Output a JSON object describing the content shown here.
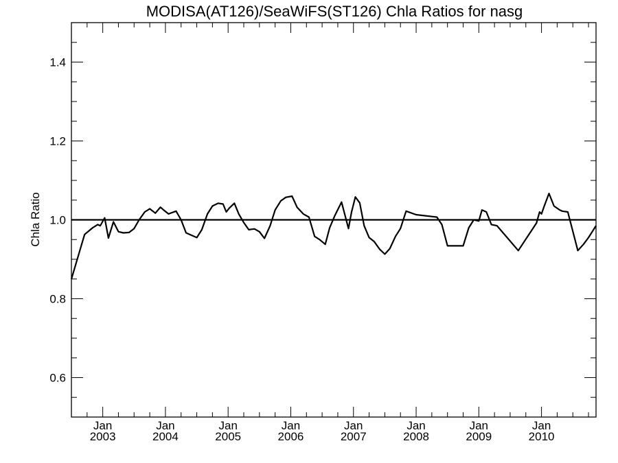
{
  "chart_data": {
    "type": "line",
    "title": "MODISA(AT126)/SeaWiFS(ST126)  Chla Ratios for nasg",
    "xlabel": "",
    "ylabel": "Chla Ratio",
    "x_unit": "decimal year",
    "xlim": [
      2002.5,
      2010.87
    ],
    "ylim": [
      0.5,
      1.5
    ],
    "grid": false,
    "legend": "none",
    "line_color": "#000000",
    "y_ticks": [
      {
        "value": 0.6,
        "label": "0.6"
      },
      {
        "value": 0.8,
        "label": "0.8"
      },
      {
        "value": 1.0,
        "label": "1.0"
      },
      {
        "value": 1.2,
        "label": "1.2"
      },
      {
        "value": 1.4,
        "label": "1.4"
      }
    ],
    "x_ticks": [
      {
        "value": 2003.0,
        "month": "Jan",
        "year": "2003"
      },
      {
        "value": 2004.0,
        "month": "Jan",
        "year": "2004"
      },
      {
        "value": 2005.0,
        "month": "Jan",
        "year": "2005"
      },
      {
        "value": 2006.0,
        "month": "Jan",
        "year": "2006"
      },
      {
        "value": 2007.0,
        "month": "Jan",
        "year": "2007"
      },
      {
        "value": 2008.0,
        "month": "Jan",
        "year": "2008"
      },
      {
        "value": 2009.0,
        "month": "Jan",
        "year": "2009"
      },
      {
        "value": 2010.0,
        "month": "Jan",
        "year": "2010"
      }
    ],
    "reference_line": {
      "y": 1.0
    },
    "series": [
      {
        "x": [
          2002.5,
          2002.63,
          2002.71,
          2002.84,
          2002.92,
          2002.96,
          2003.03,
          2003.09,
          2003.17,
          2003.25,
          2003.33,
          2003.42,
          2003.5,
          2003.58,
          2003.67,
          2003.75,
          2003.84,
          2003.92,
          2003.97,
          2004.05,
          2004.1,
          2004.17,
          2004.25,
          2004.33,
          2004.5,
          2004.58,
          2004.67,
          2004.75,
          2004.84,
          2004.92,
          2004.97,
          2005.02,
          2005.1,
          2005.17,
          2005.25,
          2005.33,
          2005.42,
          2005.5,
          2005.58,
          2005.67,
          2005.75,
          2005.84,
          2005.92,
          2006.02,
          2006.1,
          2006.2,
          2006.29,
          2006.38,
          2006.46,
          2006.55,
          2006.62,
          2006.7,
          2006.81,
          2006.92,
          2006.97,
          2007.03,
          2007.1,
          2007.17,
          2007.25,
          2007.33,
          2007.42,
          2007.5,
          2007.58,
          2007.67,
          2007.75,
          2007.84,
          2008.0,
          2008.33,
          2008.41,
          2008.5,
          2008.63,
          2008.75,
          2008.84,
          2008.92,
          2009.0,
          2009.05,
          2009.12,
          2009.2,
          2009.29,
          2009.63,
          2009.92,
          2009.97,
          2010.0,
          2010.04,
          2010.12,
          2010.2,
          2010.29,
          2010.33,
          2010.42,
          2010.58,
          2010.67,
          2010.75,
          2010.87
        ],
        "y": [
          0.85,
          0.92,
          0.963,
          0.98,
          0.988,
          0.985,
          1.005,
          0.954,
          0.995,
          0.97,
          0.967,
          0.968,
          0.978,
          1.0,
          1.02,
          1.028,
          1.017,
          1.032,
          1.025,
          1.015,
          1.018,
          1.022,
          1.0,
          0.967,
          0.955,
          0.975,
          1.015,
          1.035,
          1.042,
          1.04,
          1.02,
          1.03,
          1.042,
          1.015,
          0.993,
          0.975,
          0.977,
          0.97,
          0.953,
          0.985,
          1.025,
          1.048,
          1.057,
          1.06,
          1.032,
          1.015,
          1.007,
          0.958,
          0.95,
          0.938,
          0.98,
          1.01,
          1.045,
          0.978,
          1.02,
          1.058,
          1.043,
          0.985,
          0.955,
          0.945,
          0.925,
          0.913,
          0.927,
          0.958,
          0.978,
          1.022,
          1.013,
          1.007,
          0.988,
          0.934,
          0.934,
          0.934,
          0.98,
          1.0,
          0.997,
          1.025,
          1.02,
          0.988,
          0.985,
          0.922,
          0.992,
          1.02,
          1.015,
          1.033,
          1.067,
          1.035,
          1.025,
          1.022,
          1.02,
          0.922,
          0.938,
          0.955,
          0.985
        ]
      }
    ]
  }
}
